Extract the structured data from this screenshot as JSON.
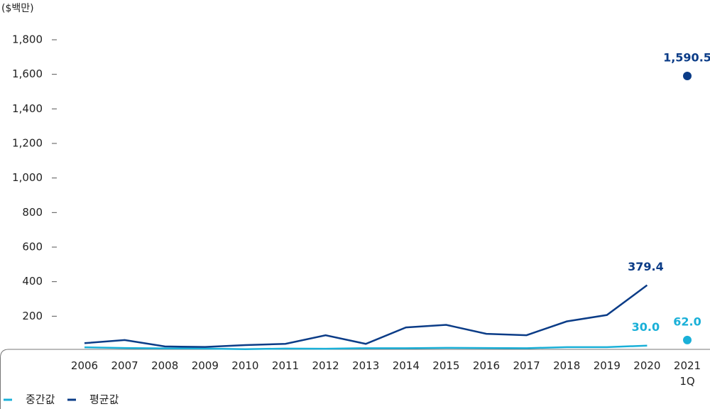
{
  "chart_data": {
    "type": "line",
    "y_axis_label": "($백만)",
    "categories": [
      "2006",
      "2007",
      "2008",
      "2009",
      "2010",
      "2011",
      "2012",
      "2013",
      "2014",
      "2015",
      "2016",
      "2017",
      "2018",
      "2019",
      "2020",
      "2021\n1Q"
    ],
    "series": [
      {
        "name": "중간값",
        "color": "#1ab0d8",
        "values": [
          20,
          16,
          14,
          13,
          9,
          13,
          12,
          15,
          15,
          17,
          16,
          15,
          21,
          21,
          30.0,
          62.0
        ],
        "value_labels": [
          null,
          null,
          null,
          null,
          null,
          null,
          null,
          null,
          null,
          null,
          null,
          null,
          null,
          null,
          "30.0",
          "62.0"
        ]
      },
      {
        "name": "평균값",
        "color": "#0b3c87",
        "values": [
          44,
          62,
          25,
          22,
          33,
          40,
          90,
          40,
          135,
          150,
          98,
          90,
          170,
          207,
          379.4,
          1590.5
        ],
        "value_labels": [
          null,
          null,
          null,
          null,
          null,
          null,
          null,
          null,
          null,
          null,
          null,
          null,
          null,
          null,
          "379.4",
          "1,590.5"
        ]
      }
    ],
    "ylim": [
      0,
      1800
    ],
    "yticks": [
      200,
      400,
      600,
      800,
      {
        "value": 1000,
        "label": "1,000"
      },
      {
        "value": 1200,
        "label": "1,200"
      },
      {
        "value": 1400,
        "label": "1,400"
      },
      {
        "value": 1600,
        "label": "1,600"
      },
      {
        "value": 1800,
        "label": "1,800"
      }
    ],
    "legend": "bottom-left"
  }
}
